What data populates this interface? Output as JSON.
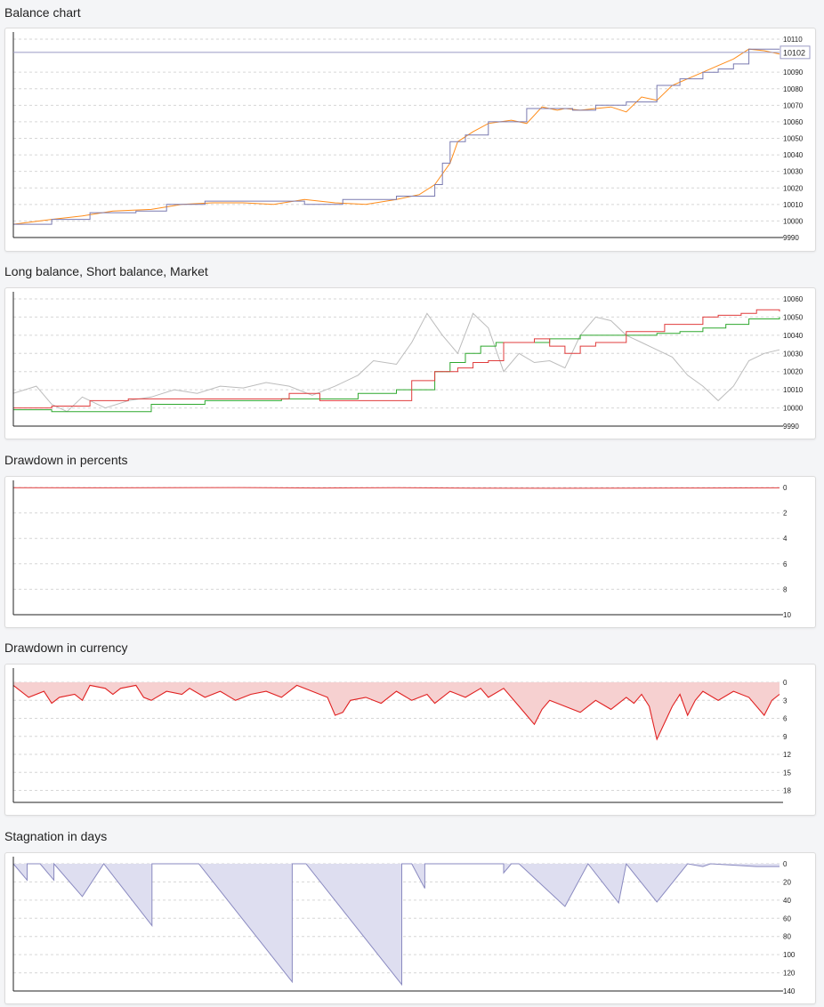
{
  "chart_data": [
    {
      "id": "balance",
      "type": "line",
      "title": "Balance chart",
      "ylim": [
        9990,
        10110
      ],
      "yticks": [
        9990,
        10000,
        10010,
        10020,
        10030,
        10040,
        10050,
        10060,
        10070,
        10080,
        10090,
        10110
      ],
      "current_label": "10102",
      "current_value": 10102,
      "grid": true,
      "series": [
        {
          "kind": "equity",
          "color": "#ff8c1a",
          "x": [
            0,
            0.05,
            0.09,
            0.13,
            0.18,
            0.22,
            0.26,
            0.3,
            0.34,
            0.38,
            0.42,
            0.46,
            0.5,
            0.53,
            0.55,
            0.57,
            0.58,
            0.6,
            0.62,
            0.65,
            0.67,
            0.69,
            0.71,
            0.72,
            0.74,
            0.76,
            0.78,
            0.8,
            0.82,
            0.83,
            0.84,
            0.86,
            0.88,
            0.9,
            0.92,
            0.94,
            0.96,
            0.98,
            1.0
          ],
          "y": [
            9998,
            10001,
            10003,
            10006,
            10007,
            10010,
            10011,
            10011,
            10010,
            10013,
            10011,
            10010,
            10013,
            10016,
            10022,
            10035,
            10048,
            10054,
            10059,
            10061,
            10059,
            10069,
            10067,
            10068,
            10067,
            10068,
            10069,
            10066,
            10075,
            10074,
            10073,
            10082,
            10086,
            10090,
            10094,
            10098,
            10104,
            10103,
            10101
          ]
        },
        {
          "kind": "balance",
          "color": "#7a7ab0",
          "x": [
            0,
            0.05,
            0.09,
            0.1,
            0.13,
            0.16,
            0.2,
            0.25,
            0.3,
            0.36,
            0.38,
            0.43,
            0.46,
            0.5,
            0.53,
            0.55,
            0.56,
            0.57,
            0.59,
            0.62,
            0.65,
            0.67,
            0.7,
            0.73,
            0.76,
            0.8,
            0.84,
            0.87,
            0.9,
            0.92,
            0.94,
            0.96,
            0.98,
            1.0
          ],
          "y": [
            9998,
            10001,
            10001,
            10005,
            10005,
            10006,
            10010,
            10012,
            10012,
            10012,
            10010,
            10013,
            10013,
            10015,
            10015,
            10022,
            10035,
            10048,
            10052,
            10060,
            10060,
            10068,
            10068,
            10067,
            10070,
            10072,
            10082,
            10086,
            10090,
            10092,
            10095,
            10104,
            10104,
            10104
          ]
        }
      ]
    },
    {
      "id": "long-short-market",
      "type": "line",
      "title": "Long balance, Short balance, Market",
      "ylim": [
        9990,
        10060
      ],
      "yticks": [
        9990,
        10000,
        10010,
        10020,
        10030,
        10040,
        10050,
        10060
      ],
      "grid": true,
      "series": [
        {
          "kind": "market",
          "color": "#bcbcbc",
          "x": [
            0,
            0.03,
            0.05,
            0.07,
            0.09,
            0.12,
            0.15,
            0.18,
            0.21,
            0.24,
            0.27,
            0.3,
            0.33,
            0.36,
            0.39,
            0.42,
            0.45,
            0.47,
            0.5,
            0.52,
            0.54,
            0.56,
            0.58,
            0.6,
            0.62,
            0.64,
            0.66,
            0.68,
            0.7,
            0.72,
            0.74,
            0.76,
            0.78,
            0.8,
            0.82,
            0.84,
            0.86,
            0.88,
            0.9,
            0.92,
            0.94,
            0.96,
            0.98,
            1.0
          ],
          "y": [
            10008,
            10012,
            10002,
            9998,
            10006,
            10000,
            10004,
            10006,
            10010,
            10008,
            10012,
            10011,
            10014,
            10012,
            10007,
            10012,
            10018,
            10026,
            10024,
            10036,
            10052,
            10040,
            10030,
            10052,
            10044,
            10020,
            10030,
            10025,
            10026,
            10022,
            10040,
            10050,
            10048,
            10040,
            10036,
            10032,
            10028,
            10018,
            10012,
            10004,
            10012,
            10026,
            10030,
            10032
          ]
        },
        {
          "kind": "long",
          "color": "#2fa82f",
          "x": [
            0,
            0.05,
            0.18,
            0.25,
            0.35,
            0.45,
            0.5,
            0.55,
            0.57,
            0.59,
            0.61,
            0.63,
            0.66,
            0.7,
            0.74,
            0.78,
            0.81,
            0.84,
            0.87,
            0.9,
            0.93,
            0.96,
            1.0
          ],
          "y": [
            9999,
            9998,
            10002,
            10004,
            10005,
            10008,
            10010,
            10020,
            10025,
            10030,
            10034,
            10036,
            10036,
            10038,
            10040,
            10040,
            10040,
            10041,
            10042,
            10044,
            10046,
            10049,
            10050
          ]
        },
        {
          "kind": "short",
          "color": "#e03c3c",
          "x": [
            0,
            0.05,
            0.1,
            0.15,
            0.25,
            0.3,
            0.36,
            0.4,
            0.45,
            0.5,
            0.52,
            0.55,
            0.58,
            0.6,
            0.62,
            0.64,
            0.66,
            0.68,
            0.7,
            0.72,
            0.74,
            0.76,
            0.8,
            0.85,
            0.9,
            0.92,
            0.95,
            0.97,
            1.0
          ],
          "y": [
            10000,
            10001,
            10004,
            10005,
            10005,
            10005,
            10008,
            10004,
            10004,
            10004,
            10015,
            10020,
            10022,
            10025,
            10026,
            10036,
            10036,
            10038,
            10034,
            10030,
            10034,
            10036,
            10042,
            10046,
            10050,
            10051,
            10052,
            10054,
            10053
          ]
        }
      ]
    },
    {
      "id": "drawdown-percent",
      "type": "line",
      "title": "Drawdown in percents",
      "ylim": [
        0,
        10
      ],
      "inverted": true,
      "yticks": [
        0,
        2,
        4,
        6,
        8,
        10
      ],
      "grid": true,
      "series": [
        {
          "kind": "drawdown",
          "color": "#e03c3c",
          "x": [
            0,
            0.1,
            0.2,
            0.3,
            0.4,
            0.5,
            0.6,
            0.7,
            0.8,
            0.9,
            1.0
          ],
          "y": [
            0.02,
            0.03,
            0.02,
            0.01,
            0.04,
            0.02,
            0.05,
            0.06,
            0.05,
            0.04,
            0.03
          ]
        }
      ]
    },
    {
      "id": "drawdown-currency",
      "type": "area",
      "title": "Drawdown in currency",
      "ylim": [
        0,
        20
      ],
      "inverted": true,
      "yticks": [
        0,
        3,
        6,
        9,
        12,
        15,
        18
      ],
      "grid": true,
      "series": [
        {
          "kind": "drawdown",
          "color": "#e02020",
          "fill": "#f6d0d0",
          "x": [
            0,
            0.02,
            0.04,
            0.05,
            0.06,
            0.08,
            0.09,
            0.1,
            0.12,
            0.13,
            0.14,
            0.16,
            0.17,
            0.18,
            0.2,
            0.22,
            0.23,
            0.25,
            0.27,
            0.29,
            0.31,
            0.33,
            0.35,
            0.37,
            0.39,
            0.41,
            0.42,
            0.43,
            0.44,
            0.46,
            0.48,
            0.5,
            0.52,
            0.54,
            0.55,
            0.57,
            0.59,
            0.61,
            0.62,
            0.64,
            0.66,
            0.67,
            0.68,
            0.69,
            0.7,
            0.72,
            0.74,
            0.76,
            0.78,
            0.8,
            0.81,
            0.82,
            0.83,
            0.84,
            0.86,
            0.87,
            0.88,
            0.89,
            0.9,
            0.92,
            0.94,
            0.96,
            0.98,
            0.99,
            1.0
          ],
          "y": [
            0.5,
            2.5,
            1.5,
            3.5,
            2.5,
            2.0,
            3.0,
            0.5,
            1.0,
            2.0,
            1.0,
            0.5,
            2.5,
            3.0,
            1.5,
            2.0,
            1.0,
            2.5,
            1.5,
            3.0,
            2.0,
            1.5,
            2.5,
            0.5,
            1.5,
            2.5,
            5.5,
            5.0,
            3.0,
            2.5,
            3.5,
            1.5,
            3.0,
            2.0,
            3.5,
            1.5,
            2.5,
            1.0,
            2.5,
            1.0,
            4.0,
            5.5,
            7.0,
            4.5,
            3.0,
            4.0,
            5.0,
            3.0,
            4.5,
            2.5,
            3.5,
            2.0,
            4.0,
            9.5,
            4.0,
            2.0,
            5.5,
            3.0,
            1.5,
            3.0,
            1.5,
            2.5,
            5.5,
            3.0,
            2.0
          ]
        }
      ]
    },
    {
      "id": "stagnation",
      "type": "area",
      "title": "Stagnation in days",
      "ylim": [
        0,
        140
      ],
      "inverted": true,
      "yticks": [
        0,
        20,
        40,
        60,
        80,
        100,
        120,
        140
      ],
      "grid": true,
      "series": [
        {
          "kind": "stagnation",
          "color": "#8a8ac0",
          "fill": "#dedef0",
          "x": [
            0,
            0.018,
            0.018,
            0.035,
            0.053,
            0.053,
            0.09,
            0.118,
            0.118,
            0.181,
            0.181,
            0.242,
            0.242,
            0.364,
            0.364,
            0.382,
            0.382,
            0.507,
            0.507,
            0.52,
            0.537,
            0.537,
            0.56,
            0.64,
            0.64,
            0.65,
            0.66,
            0.66,
            0.72,
            0.75,
            0.75,
            0.79,
            0.8,
            0.8,
            0.84,
            0.88,
            0.9,
            0.91,
            0.97,
            1.0
          ],
          "y": [
            0,
            18,
            0,
            0,
            18,
            0,
            36,
            0,
            0,
            68,
            0,
            0,
            0,
            130,
            0,
            0,
            0,
            133,
            0,
            0,
            27,
            0,
            0,
            0,
            10,
            0,
            0,
            0,
            47,
            0,
            0,
            43,
            0,
            0,
            42,
            0,
            3,
            0,
            3,
            3
          ]
        }
      ]
    }
  ]
}
